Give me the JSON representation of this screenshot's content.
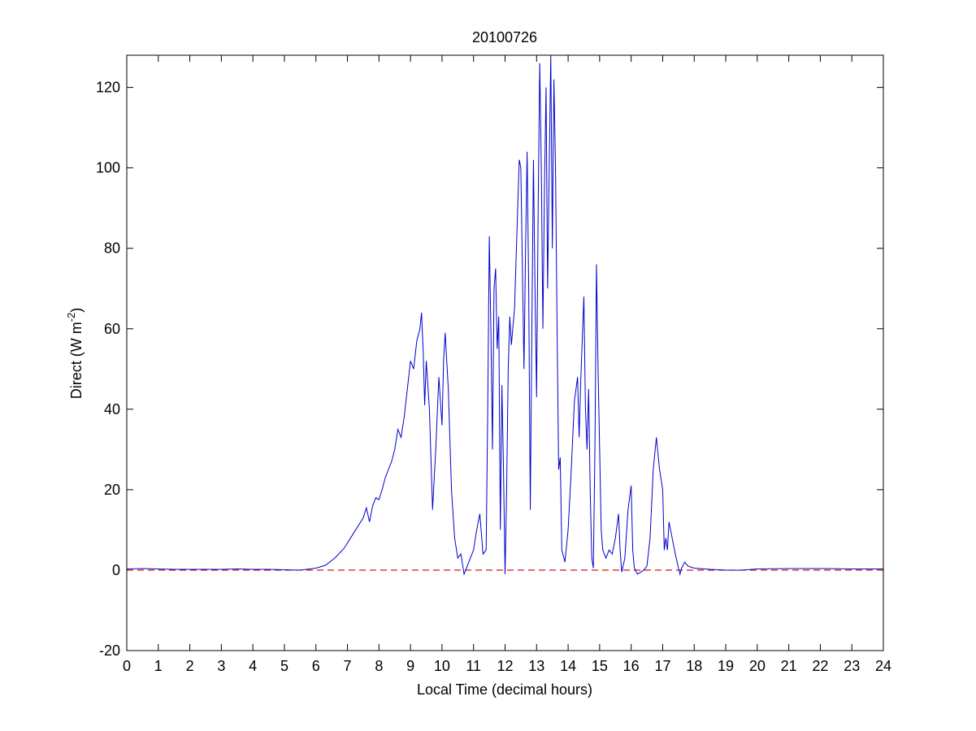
{
  "chart_data": {
    "type": "line",
    "title": "20100726",
    "xlabel": "Local Time (decimal hours)",
    "ylabel": {
      "text": "Direct (W m",
      "sup": "-2",
      "end": ")"
    },
    "xlim": [
      0,
      24
    ],
    "xticks": [
      0,
      1,
      2,
      3,
      4,
      5,
      6,
      7,
      8,
      9,
      10,
      11,
      12,
      13,
      14,
      15,
      16,
      17,
      18,
      19,
      20,
      21,
      22,
      23,
      24
    ],
    "ylim": [
      -20,
      128
    ],
    "yticks": [
      -20,
      0,
      20,
      40,
      60,
      80,
      100,
      120
    ],
    "reference_line": {
      "value": 0,
      "color": "#cc0000",
      "dashed": true
    },
    "series": [
      {
        "color": "#0000cc",
        "x": [
          0,
          0.5,
          1,
          1.5,
          2,
          2.5,
          3,
          3.5,
          4,
          4.5,
          5,
          5.5,
          6,
          6.3,
          6.6,
          6.9,
          7.1,
          7.3,
          7.5,
          7.6,
          7.7,
          7.8,
          7.9,
          8.0,
          8.1,
          8.2,
          8.3,
          8.4,
          8.5,
          8.6,
          8.7,
          8.8,
          8.9,
          9.0,
          9.1,
          9.2,
          9.3,
          9.35,
          9.4,
          9.45,
          9.5,
          9.6,
          9.7,
          9.8,
          9.9,
          10.0,
          10.05,
          10.1,
          10.2,
          10.3,
          10.4,
          10.5,
          10.6,
          10.7,
          10.8,
          10.9,
          11.0,
          11.1,
          11.2,
          11.3,
          11.4,
          11.45,
          11.5,
          11.55,
          11.6,
          11.65,
          11.7,
          11.75,
          11.8,
          11.85,
          11.9,
          11.95,
          12.0,
          12.05,
          12.1,
          12.15,
          12.2,
          12.3,
          12.4,
          12.45,
          12.5,
          12.55,
          12.6,
          12.65,
          12.7,
          12.75,
          12.8,
          12.85,
          12.9,
          12.95,
          13.0,
          13.05,
          13.1,
          13.15,
          13.2,
          13.25,
          13.3,
          13.35,
          13.4,
          13.45,
          13.5,
          13.55,
          13.6,
          13.65,
          13.7,
          13.75,
          13.8,
          13.9,
          14.0,
          14.1,
          14.2,
          14.3,
          14.35,
          14.4,
          14.5,
          14.55,
          14.6,
          14.65,
          14.7,
          14.75,
          14.8,
          14.85,
          14.9,
          14.95,
          15.0,
          15.05,
          15.1,
          15.2,
          15.3,
          15.4,
          15.5,
          15.6,
          15.65,
          15.7,
          15.8,
          15.9,
          16.0,
          16.05,
          16.1,
          16.2,
          16.3,
          16.4,
          16.5,
          16.6,
          16.7,
          16.8,
          16.9,
          17.0,
          17.05,
          17.1,
          17.15,
          17.2,
          17.3,
          17.4,
          17.5,
          17.55,
          17.6,
          17.7,
          17.8,
          18.0,
          18.5,
          19,
          19.5,
          20,
          21,
          22,
          23,
          24
        ],
        "values": [
          0.3,
          0.4,
          0.3,
          0.2,
          0.2,
          0.2,
          0.2,
          0.3,
          0.2,
          0.2,
          0.1,
          0,
          0.5,
          1.2,
          3,
          5.5,
          8,
          10.5,
          13,
          15.5,
          12,
          16,
          18,
          17.5,
          20,
          23,
          25,
          27,
          30,
          35,
          33,
          38,
          45,
          52,
          50,
          57,
          60,
          64,
          55,
          41,
          52,
          40,
          15,
          30,
          48,
          36,
          52,
          59,
          45,
          20,
          8,
          3,
          4,
          -1,
          1,
          3,
          5,
          10,
          14,
          4,
          5,
          40,
          83,
          60,
          30,
          70,
          75,
          55,
          63,
          10,
          46,
          25,
          -1,
          20,
          50,
          63,
          56,
          65,
          90,
          102,
          100,
          75,
          50,
          80,
          104,
          70,
          15,
          60,
          102,
          70,
          43,
          90,
          126,
          100,
          60,
          95,
          120,
          70,
          100,
          128,
          80,
          122,
          100,
          60,
          25,
          28,
          5,
          2,
          10,
          25,
          42,
          48,
          33,
          47,
          68,
          40,
          30,
          45,
          20,
          3,
          0.5,
          30,
          76,
          50,
          30,
          10,
          5,
          3,
          5,
          4,
          8,
          14,
          5,
          -0.5,
          3,
          15,
          21,
          5,
          0.5,
          -1,
          -0.5,
          0,
          1,
          8,
          25,
          33,
          25,
          20,
          5,
          8,
          5,
          12,
          8,
          4,
          0.5,
          -1,
          0.5,
          2,
          1,
          0.5,
          0.2,
          0,
          0,
          0.3,
          0.4,
          0.4,
          0.3,
          0.3
        ]
      }
    ]
  }
}
